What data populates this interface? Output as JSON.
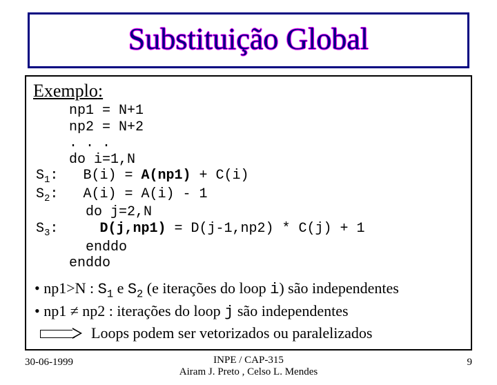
{
  "title": "Substituição Global",
  "exemplo_label": "Exemplo",
  "code": {
    "l1": "    np1 = N+1",
    "l2": "    np2 = N+2",
    "l3": "    . . .",
    "l4": "    do i=1,N",
    "s1_label": "S",
    "s1_sub": "1",
    "s1_colon": ":",
    "l5a": "   B(i) = ",
    "l5b": "A(np1)",
    "l5c": " + C(i)",
    "s2_label": "S",
    "s2_sub": "2",
    "s2_colon": ":",
    "l6a": "   A(i) = A(i) - 1",
    "l7": "      do j=2,N",
    "s3_label": "S",
    "s3_sub": "3",
    "s3_colon": ":",
    "l8a": "     ",
    "l8b": "D(j,np1)",
    "l8c": " = D(j-1,np2) * C(j) + 1",
    "l9": "      enddo",
    "l10": "    enddo"
  },
  "bullets": {
    "b1a": "• np1>N : ",
    "b1b": "S",
    "b1b_sub": "1",
    "b1c": " e ",
    "b1d": "S",
    "b1d_sub": "2",
    "b1e": " (e iterações do loop ",
    "b1f": "i",
    "b1g": ") são independentes",
    "b2a": "• np1 ≠ np2 :  iterações do loop ",
    "b2b": "j",
    "b2c": " são independentes",
    "b3": "Loops podem ser vetorizados ou paralelizados"
  },
  "footer": {
    "date": "30-06-1999",
    "center1": "INPE / CAP-315",
    "center2": "Airam J. Preto , Celso L. Mendes",
    "page": "9"
  },
  "colors": {
    "title_text": "#000080",
    "title_outline": "#ff00ff",
    "border_navy": "#000080",
    "border_black": "#000000",
    "background": "#ffffff"
  }
}
